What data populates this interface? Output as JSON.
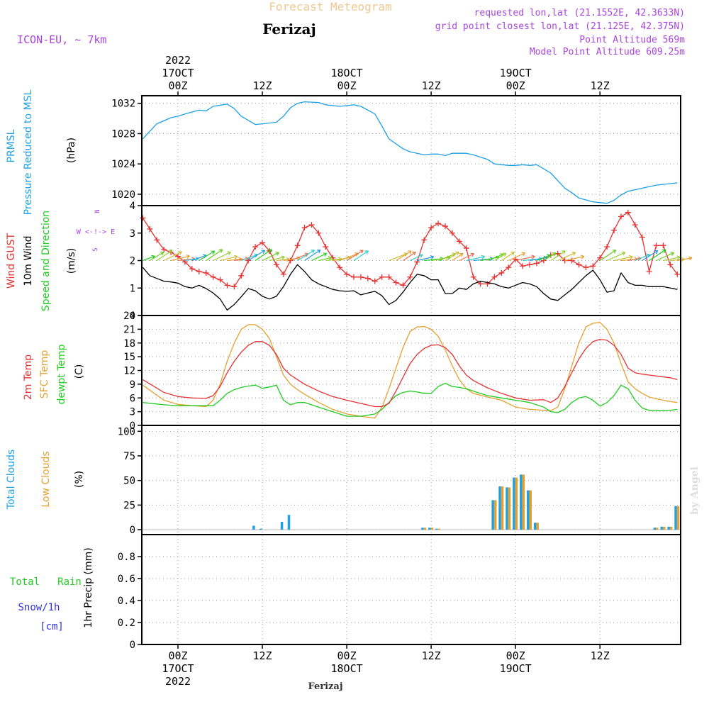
{
  "header": {
    "title_top": "Forecast Meteogram",
    "city": "Ferizaj",
    "model": "ICON-EU, ~ 7km",
    "requested": "requested lon,lat (21.1552E, 42.3633N)",
    "grid_point": "grid point closest lon,lat (21.125E, 42.375N)",
    "point_altitude": "Point Altitude 569m",
    "model_altitude": "Model Point Altitude 609.25m",
    "footer_city": "Ferizaj",
    "watermark": "by Angel"
  },
  "colors": {
    "pressure": "#1ea0e6",
    "gust": "#e63232",
    "wind10m": "#000000",
    "arrows": "#22cc22",
    "t2m": "#e63232",
    "sfc": "#e6a030",
    "dewpt": "#22cc22",
    "total_clouds": "#1ea0e6",
    "low_clouds": "#e6a030",
    "rain": "#22cc22",
    "snow": "#3333dd",
    "compass": "#aa44dd",
    "grid": "#999999"
  },
  "time_axis": {
    "top_labels": [
      {
        "t": 0,
        "lines": [
          "2022",
          "17OCT",
          "00Z"
        ]
      },
      {
        "t": 12,
        "lines": [
          "12Z"
        ]
      },
      {
        "t": 24,
        "lines": [
          "18OCT",
          "00Z"
        ]
      },
      {
        "t": 36,
        "lines": [
          "12Z"
        ]
      },
      {
        "t": 48,
        "lines": [
          "19OCT",
          "00Z"
        ]
      },
      {
        "t": 60,
        "lines": [
          "12Z"
        ]
      }
    ],
    "bottom_labels": [
      {
        "t": 0,
        "lines": [
          "00Z",
          "17OCT",
          "2022"
        ]
      },
      {
        "t": 12,
        "lines": [
          "12Z"
        ]
      },
      {
        "t": 24,
        "lines": [
          "00Z",
          "18OCT"
        ]
      },
      {
        "t": 36,
        "lines": [
          "12Z"
        ]
      },
      {
        "t": 48,
        "lines": [
          "00Z",
          "19OCT"
        ]
      },
      {
        "t": 60,
        "lines": [
          "12Z"
        ]
      }
    ]
  },
  "panels": {
    "pressure": {
      "labels": [
        "PRMSL",
        "Pressure Reduced to MSL",
        "(hPa)"
      ],
      "yticks": [
        "1020",
        "1024",
        "1028",
        "1032"
      ]
    },
    "wind": {
      "labels": [
        "Wind GUST",
        "10m Wind",
        "Speed and Direction",
        "(m/s)"
      ],
      "yticks": [
        "0",
        "1",
        "2",
        "3",
        "4"
      ],
      "compass": [
        "N",
        "W <-!-> E",
        "S"
      ]
    },
    "temp": {
      "labels": [
        "2m Temp",
        "SFC Temp",
        "dewpt Temp",
        "(C)"
      ],
      "yticks": [
        "0",
        "3",
        "6",
        "9",
        "12",
        "15",
        "18",
        "21",
        "24"
      ]
    },
    "clouds": {
      "labels": [
        "Total Clouds",
        "Low Clouds",
        "(%)"
      ],
      "yticks": [
        "0",
        "25",
        "50",
        "75",
        "100"
      ]
    },
    "precip": {
      "labels": [
        "Total",
        "Rain",
        "Snow/1h",
        "[cm]",
        "1hr Precip (mm)"
      ],
      "yticks": [
        "0",
        "0.2",
        "0.4",
        "0.6",
        "0.8"
      ]
    }
  },
  "chart_data": [
    {
      "type": "line",
      "panel": "pressure",
      "ylabel": "(hPa)",
      "ylim": [
        1018.5,
        1033
      ],
      "x_hours": [
        -5,
        -4,
        -3,
        -1,
        0,
        1,
        3,
        4,
        5,
        7,
        8,
        9,
        11,
        12,
        14,
        15,
        16,
        17,
        18,
        20,
        21,
        23,
        24,
        25,
        26,
        28,
        29,
        30,
        32,
        33,
        35,
        36,
        37,
        38,
        39,
        41,
        42,
        44,
        45,
        47,
        48,
        49,
        50,
        51,
        53,
        54,
        55,
        56,
        57,
        59,
        61,
        62,
        63,
        64,
        65,
        67,
        68,
        70,
        71
      ],
      "series": [
        {
          "name": "PRMSL",
          "values": [
            1027.3,
            1028.3,
            1029.3,
            1030.1,
            1030.3,
            1030.6,
            1031.1,
            1031.0,
            1031.6,
            1031.9,
            1031.3,
            1030.3,
            1029.2,
            1029.3,
            1029.5,
            1030.3,
            1031.4,
            1032.0,
            1032.2,
            1032.1,
            1031.8,
            1031.6,
            1031.7,
            1031.8,
            1031.6,
            1030.6,
            1029.0,
            1027.3,
            1026.0,
            1025.6,
            1025.2,
            1025.3,
            1025.3,
            1025.1,
            1025.4,
            1025.4,
            1025.2,
            1024.6,
            1024.0,
            1023.8,
            1023.8,
            1023.9,
            1023.8,
            1023.9,
            1022.8,
            1021.8,
            1020.8,
            1020.2,
            1019.5,
            1019.0,
            1018.8,
            1019.2,
            1019.9,
            1020.4,
            1020.6,
            1021.0,
            1021.2,
            1021.4,
            1021.5
          ]
        }
      ]
    },
    {
      "type": "line",
      "panel": "wind",
      "ylabel": "(m/s)",
      "ylim": [
        0,
        4
      ],
      "x_hours": [
        -5,
        -4,
        -3,
        -2,
        -1,
        0,
        1,
        2,
        3,
        4,
        5,
        6,
        7,
        8,
        9,
        10,
        11,
        12,
        13,
        14,
        15,
        16,
        17,
        18,
        19,
        20,
        21,
        22,
        23,
        24,
        25,
        26,
        27,
        28,
        29,
        30,
        31,
        32,
        33,
        34,
        35,
        36,
        37,
        38,
        39,
        40,
        41,
        42,
        43,
        44,
        45,
        46,
        47,
        48,
        49,
        50,
        51,
        52,
        53,
        54,
        55,
        56,
        57,
        58,
        59,
        60,
        61,
        62,
        63,
        64,
        65,
        66,
        67,
        68,
        69,
        70,
        71
      ],
      "series": [
        {
          "name": "Wind GUST",
          "values": [
            3.55,
            3.15,
            2.75,
            2.4,
            2.3,
            2.15,
            1.95,
            1.7,
            1.6,
            1.55,
            1.4,
            1.3,
            1.1,
            1.05,
            1.45,
            2.0,
            2.5,
            2.65,
            2.35,
            1.85,
            1.5,
            2.0,
            2.55,
            3.2,
            3.3,
            3.0,
            2.5,
            2.1,
            1.75,
            1.5,
            1.4,
            1.4,
            1.35,
            1.25,
            1.4,
            1.4,
            1.2,
            1.1,
            1.4,
            1.95,
            2.75,
            3.2,
            3.35,
            3.25,
            3.0,
            2.7,
            2.45,
            1.4,
            1.15,
            1.15,
            1.4,
            1.55,
            1.75,
            2.05,
            1.8,
            1.85,
            1.9,
            2.0,
            2.2,
            2.25,
            2.0,
            2.0,
            1.85,
            1.75,
            1.8,
            2.1,
            2.5,
            3.1,
            3.6,
            3.75,
            3.3,
            2.85,
            1.6,
            2.55,
            2.55,
            1.85,
            1.5
          ]
        },
        {
          "name": "10m Wind",
          "values": [
            1.75,
            1.45,
            1.35,
            1.25,
            1.22,
            1.18,
            1.05,
            1.0,
            1.1,
            0.98,
            0.82,
            0.6,
            0.2,
            0.4,
            0.68,
            0.98,
            0.9,
            0.7,
            0.6,
            0.7,
            1.05,
            1.5,
            1.85,
            1.6,
            1.3,
            1.15,
            1.05,
            0.95,
            0.9,
            0.88,
            0.9,
            0.75,
            0.82,
            0.88,
            0.72,
            0.4,
            0.55,
            0.85,
            1.2,
            1.5,
            1.45,
            1.3,
            1.3,
            0.8,
            0.8,
            1.0,
            0.95,
            1.15,
            1.25,
            1.2,
            1.15,
            1.05,
            1.0,
            1.1,
            1.2,
            1.15,
            1.05,
            0.8,
            0.6,
            0.55,
            0.75,
            0.95,
            1.2,
            1.45,
            1.65,
            1.3,
            0.85,
            0.9,
            1.55,
            1.2,
            1.1,
            1.1,
            1.05,
            1.05,
            1.05,
            1.0,
            0.95
          ]
        }
      ]
    },
    {
      "type": "line",
      "panel": "temp",
      "ylabel": "(C)",
      "ylim": [
        0,
        24
      ],
      "x_hours": [
        -5,
        -2,
        0,
        2,
        4,
        5,
        6,
        7,
        8,
        9,
        10,
        11,
        12,
        13,
        14,
        15,
        16,
        17,
        18,
        20,
        22,
        24,
        26,
        28,
        29,
        30,
        31,
        32,
        33,
        34,
        35,
        36,
        37,
        38,
        39,
        40,
        41,
        42,
        44,
        46,
        48,
        50,
        52,
        53,
        54,
        55,
        56,
        57,
        58,
        59,
        60,
        61,
        62,
        63,
        64,
        65,
        66,
        67,
        68,
        70,
        71
      ],
      "series": [
        {
          "name": "2m Temp",
          "values": [
            10.0,
            7.2,
            6.3,
            6.0,
            5.9,
            6.5,
            8.5,
            11.5,
            14.0,
            16.0,
            17.5,
            18.3,
            18.3,
            17.5,
            15.5,
            12.5,
            11.0,
            10.0,
            9.0,
            7.5,
            6.3,
            5.5,
            4.8,
            4.1,
            4.1,
            4.8,
            7.5,
            10.5,
            13.5,
            15.5,
            16.8,
            17.5,
            17.6,
            17.0,
            15.5,
            13.0,
            11.0,
            9.8,
            8.2,
            7.0,
            6.0,
            5.5,
            5.6,
            5.0,
            6.0,
            8.5,
            11.5,
            14.5,
            16.8,
            18.3,
            18.8,
            18.6,
            17.5,
            15.5,
            12.5,
            11.5,
            11.2,
            11.0,
            10.8,
            10.4,
            10.0
          ]
        },
        {
          "name": "SFC Temp",
          "values": [
            8.8,
            5.5,
            4.6,
            4.3,
            4.1,
            5.5,
            9.0,
            14.0,
            18.0,
            21.0,
            22.0,
            22.0,
            21.0,
            19.0,
            15.0,
            11.0,
            9.0,
            7.8,
            6.8,
            5.0,
            3.5,
            2.5,
            2.0,
            1.6,
            4.0,
            8.0,
            12.5,
            17.0,
            20.5,
            21.5,
            21.6,
            21.0,
            19.5,
            16.5,
            13.0,
            10.0,
            8.0,
            7.0,
            6.2,
            5.5,
            4.0,
            3.5,
            3.3,
            3.2,
            4.0,
            8.0,
            13.0,
            18.0,
            21.5,
            22.3,
            22.5,
            21.0,
            18.0,
            13.5,
            9.5,
            8.0,
            7.0,
            6.2,
            5.8,
            5.2,
            5.0
          ]
        },
        {
          "name": "dewpt Temp",
          "values": [
            5.0,
            4.5,
            4.3,
            4.3,
            4.3,
            4.3,
            5.5,
            7.0,
            7.8,
            8.3,
            8.6,
            8.8,
            8.1,
            8.4,
            8.8,
            5.5,
            4.5,
            5.0,
            5.0,
            4.0,
            3.0,
            2.0,
            2.0,
            2.5,
            3.5,
            5.0,
            6.5,
            7.2,
            7.5,
            7.3,
            7.0,
            7.0,
            8.5,
            9.2,
            8.5,
            8.3,
            8.0,
            7.5,
            6.5,
            6.0,
            5.5,
            5.0,
            4.0,
            3.0,
            2.8,
            3.5,
            5.0,
            6.0,
            6.3,
            5.5,
            4.2,
            5.0,
            6.5,
            8.8,
            8.0,
            5.5,
            3.8,
            3.3,
            3.2,
            3.3,
            3.5
          ]
        }
      ]
    },
    {
      "type": "bar",
      "panel": "clouds",
      "ylabel": "(%)",
      "ylim": [
        -5,
        106
      ],
      "categories": [
        11,
        12,
        15,
        16,
        35,
        36,
        37,
        45,
        46,
        47,
        48,
        49,
        50,
        51,
        68,
        69,
        70,
        71
      ],
      "series": [
        {
          "name": "Total Clouds",
          "values": [
            4,
            1,
            8,
            15,
            2,
            2,
            1,
            30,
            44,
            43,
            53,
            56,
            40,
            7,
            2,
            3,
            3,
            24
          ]
        },
        {
          "name": "Low Clouds",
          "values": [
            0,
            0,
            0,
            0,
            2,
            2,
            1,
            30,
            44,
            43,
            53,
            56,
            40,
            7,
            2,
            3,
            3,
            24
          ]
        }
      ]
    },
    {
      "type": "bar",
      "panel": "precip",
      "ylabel": "1hr Precip (mm)",
      "ylim": [
        0,
        1.0
      ],
      "categories": [],
      "series": [
        {
          "name": "Total",
          "values": []
        },
        {
          "name": "Rain",
          "values": []
        },
        {
          "name": "Snow/1h",
          "values": []
        }
      ]
    }
  ]
}
